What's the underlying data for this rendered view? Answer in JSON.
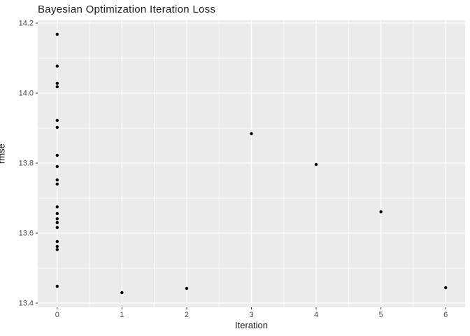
{
  "chart_data": {
    "type": "scatter",
    "title": "Bayesian Optimization Iteration Loss",
    "xlabel": "Iteration",
    "ylabel": "rmse",
    "xlim": [
      -0.3,
      6.3
    ],
    "ylim": [
      13.388,
      14.208
    ],
    "x_ticks": [
      0,
      1,
      2,
      3,
      4,
      5,
      6
    ],
    "x_tick_labels": [
      "0",
      "1",
      "2",
      "3",
      "4",
      "5",
      "6"
    ],
    "y_ticks": [
      13.4,
      13.6,
      13.8,
      14.0,
      14.2
    ],
    "y_tick_labels": [
      "13.4",
      "13.6",
      "13.8",
      "14.0",
      "14.2"
    ],
    "x_minor_ticks": [
      0.5,
      1.5,
      2.5,
      3.5,
      4.5,
      5.5
    ],
    "y_minor_ticks": [
      13.5,
      13.7,
      13.9,
      14.1
    ],
    "grid": true,
    "legend": "none",
    "colors": {
      "panel_background": "#EBEBEB",
      "grid_major": "#FFFFFF",
      "grid_minor": "#FFFFFF",
      "point": "#000000",
      "tick_mark": "#333333",
      "tick_label": "#4D4D4D",
      "title_text": "#1A1A1A"
    },
    "points": [
      {
        "x": 0,
        "y": 14.168
      },
      {
        "x": 0,
        "y": 14.077
      },
      {
        "x": 0,
        "y": 14.028
      },
      {
        "x": 0,
        "y": 14.018
      },
      {
        "x": 0,
        "y": 13.922
      },
      {
        "x": 0,
        "y": 13.902
      },
      {
        "x": 0,
        "y": 13.822
      },
      {
        "x": 0,
        "y": 13.79
      },
      {
        "x": 0,
        "y": 13.752
      },
      {
        "x": 0,
        "y": 13.74
      },
      {
        "x": 0,
        "y": 13.675
      },
      {
        "x": 0,
        "y": 13.656
      },
      {
        "x": 0,
        "y": 13.641
      },
      {
        "x": 0,
        "y": 13.63
      },
      {
        "x": 0,
        "y": 13.616
      },
      {
        "x": 0,
        "y": 13.576
      },
      {
        "x": 0,
        "y": 13.562
      },
      {
        "x": 0,
        "y": 13.553
      },
      {
        "x": 0,
        "y": 13.448
      },
      {
        "x": 1,
        "y": 13.43
      },
      {
        "x": 2,
        "y": 13.442
      },
      {
        "x": 3,
        "y": 13.884
      },
      {
        "x": 4,
        "y": 13.796
      },
      {
        "x": 5,
        "y": 13.661
      },
      {
        "x": 6,
        "y": 13.444
      }
    ]
  }
}
